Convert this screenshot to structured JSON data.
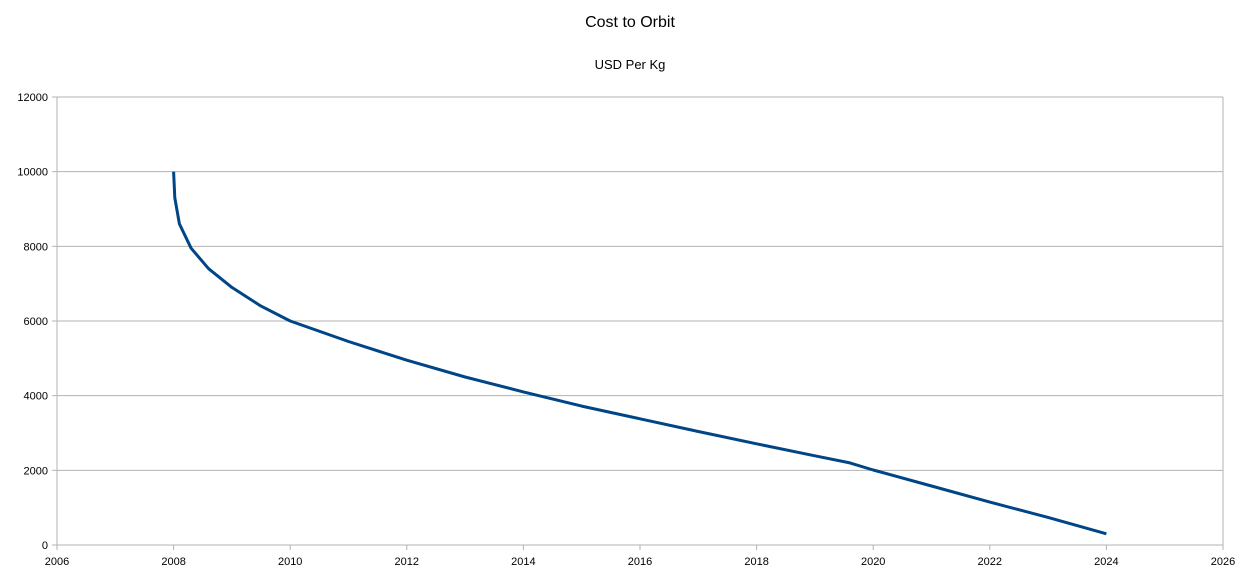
{
  "chart_data": {
    "type": "line",
    "title": "Cost to Orbit",
    "subtitle": "USD Per Kg",
    "xlabel": "",
    "ylabel": "",
    "xlim": [
      2006,
      2026
    ],
    "ylim": [
      0,
      12000
    ],
    "x_ticks": [
      "2006",
      "2008",
      "2010",
      "2012",
      "2014",
      "2016",
      "2018",
      "2020",
      "2022",
      "2024",
      "2026"
    ],
    "y_ticks": [
      "0",
      "2000",
      "4000",
      "6000",
      "8000",
      "10000",
      "12000"
    ],
    "grid": "horizontal",
    "legend": "none",
    "colors": {
      "series": "#004586",
      "grid": "#b3b3b3",
      "axis": "#b3b3b3"
    },
    "series": [
      {
        "x": [
          2008.0,
          2008.02,
          2008.1,
          2008.3,
          2008.6,
          2009.0,
          2009.5,
          2010.0,
          2011.0,
          2012.0,
          2013.0,
          2014.0,
          2015.0,
          2016.0,
          2017.0,
          2018.0,
          2019.0,
          2019.6,
          2020.0,
          2021.0,
          2022.0,
          2023.0,
          2024.0
        ],
        "values": [
          10000,
          9300,
          8600,
          7950,
          7400,
          6900,
          6400,
          6000,
          5450,
          4950,
          4500,
          4100,
          3720,
          3380,
          3040,
          2710,
          2390,
          2200,
          2010,
          1580,
          1150,
          740,
          300
        ]
      }
    ]
  }
}
